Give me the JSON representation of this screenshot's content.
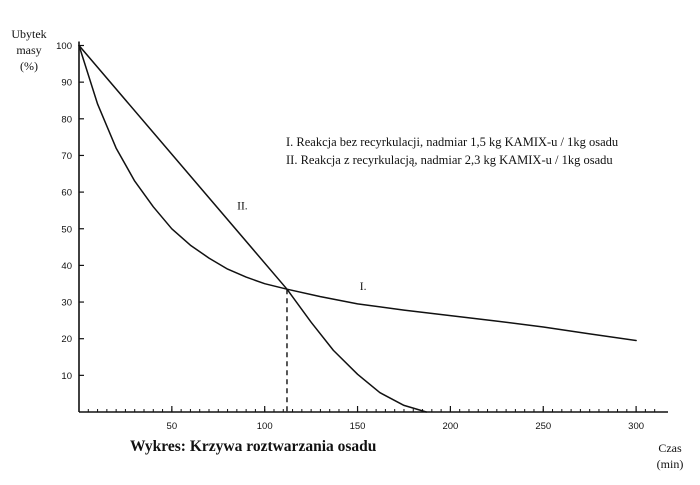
{
  "chart_data": {
    "type": "line",
    "ylabel_line1": "Ubytek",
    "ylabel_line2": "masy",
    "ylabel_line3": "(%)",
    "xlabel_line1": "Czas",
    "xlabel_line2": "(min)",
    "caption": "Wykres: Krzywa roztwarzania osadu",
    "legend": [
      "I. Reakcja bez recyrkulacji, nadmiar 1,5 kg KAMIX-u / 1kg osadu",
      "II. Reakcja z recyrkulacją, nadmiar 2,3 kg KAMIX-u / 1kg osadu"
    ],
    "xlim": [
      0,
      310
    ],
    "ylim": [
      0,
      100
    ],
    "x_ticks": [
      50,
      100,
      150,
      200,
      250,
      300
    ],
    "y_ticks": [
      10,
      20,
      30,
      40,
      50,
      60,
      70,
      80,
      90,
      100
    ],
    "series": [
      {
        "name": "I.",
        "x": [
          0,
          10,
          20,
          30,
          40,
          50,
          60,
          70,
          80,
          90,
          100,
          112,
          130,
          150,
          175,
          200,
          225,
          250,
          275,
          300
        ],
        "y": [
          100,
          84,
          72,
          63,
          56,
          50,
          45.5,
          42,
          39,
          36.8,
          35,
          33.5,
          31.5,
          29.5,
          27.8,
          26.3,
          24.8,
          23.2,
          21.3,
          19.5
        ]
      },
      {
        "name": "II.",
        "x": [
          0,
          112,
          125,
          137,
          150,
          162,
          175,
          187
        ],
        "y": [
          100,
          33.5,
          24.5,
          16.8,
          10.3,
          5.3,
          1.8,
          0
        ]
      }
    ],
    "intersection": {
      "x": 112,
      "y": 33.5
    }
  }
}
